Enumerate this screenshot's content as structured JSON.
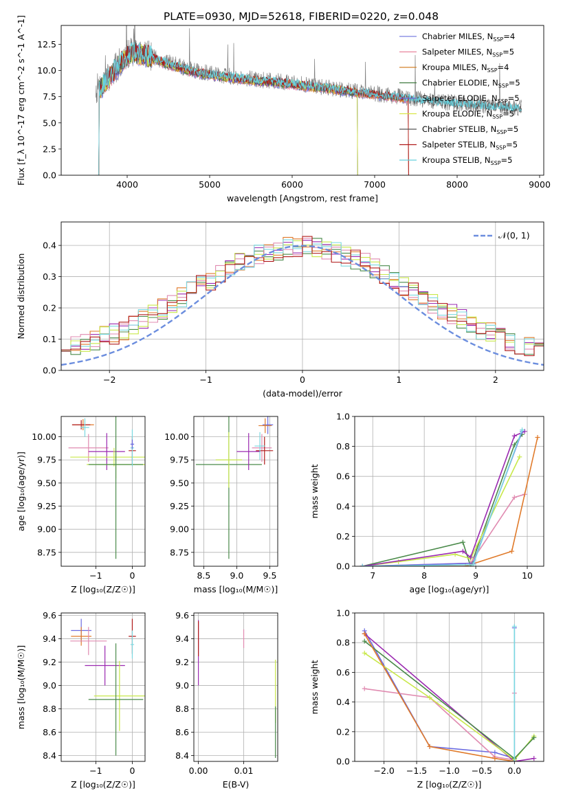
{
  "figure": {
    "title": "PLATE=0930, MJD=52618, FIBERID=0220, z=0.048"
  },
  "colors": {
    "chabrier_miles": "#7a7fe0",
    "salpeter_miles": "#e8829c",
    "kroupa_miles": "#d4822a",
    "chabrier_elodie": "#3f7a3f",
    "salpeter_elodie": "#7060d0",
    "kroupa_elodie": "#d8e645",
    "chabrier_stelib": "#555555",
    "salpeter_stelib": "#b01a1a",
    "kroupa_stelib": "#66d0dd",
    "normal": "#6b8dde",
    "purple": "#9a28b0",
    "orange": "#e07a2a",
    "green": "#4a8a4a",
    "pink": "#e08ab0",
    "lime": "#c8e84a",
    "cyan": "#7ad8e0",
    "blue": "#6a6ae0",
    "red": "#c02020",
    "grid": "#b0b0b0"
  },
  "chart_data": [
    {
      "id": "spectrum",
      "type": "line",
      "xlabel": "wavelength [Angstrom, rest frame]",
      "ylabel": "Flux [f_λ 10^-17 erg cm^-2 s^-1 A^-1]",
      "xlim": [
        3200,
        9050
      ],
      "ylim": [
        0,
        14.3
      ],
      "xticks": [
        4000,
        5000,
        6000,
        7000,
        8000,
        9000
      ],
      "yticks": [
        0.0,
        2.5,
        5.0,
        7.5,
        10.0,
        12.5
      ],
      "grid": false,
      "legend_position": "top-right",
      "legend": [
        {
          "label": "Chabrier MILES, N",
          "sub": "SSP",
          "suffix": "=4",
          "color_key": "chabrier_miles"
        },
        {
          "label": "Salpeter MILES, N",
          "sub": "SSP",
          "suffix": "=5",
          "color_key": "salpeter_miles"
        },
        {
          "label": "Kroupa MILES, N",
          "sub": "SSP",
          "suffix": "=4",
          "color_key": "kroupa_miles"
        },
        {
          "label": "Chabrier ELODIE, N",
          "sub": "SSP",
          "suffix": "=5",
          "color_key": "chabrier_elodie"
        },
        {
          "label": "Salpeter ELODIE, N",
          "sub": "SSP",
          "suffix": "=5",
          "color_key": "salpeter_elodie"
        },
        {
          "label": "Kroupa ELODIE, N",
          "sub": "SSP",
          "suffix": "=5",
          "color_key": "kroupa_elodie"
        },
        {
          "label": "Chabrier STELIB, N",
          "sub": "SSP",
          "suffix": "=5",
          "color_key": "chabrier_stelib"
        },
        {
          "label": "Salpeter STELIB, N",
          "sub": "SSP",
          "suffix": "=5",
          "color_key": "salpeter_stelib"
        },
        {
          "label": "Kroupa STELIB, N",
          "sub": "SSP",
          "suffix": "=5",
          "color_key": "kroupa_stelib"
        }
      ],
      "continuum": {
        "x": [
          3620,
          3700,
          3800,
          3900,
          4000,
          4100,
          4200,
          4400,
          4600,
          4800,
          5000,
          5200,
          5400,
          5600,
          5800,
          6000,
          6200,
          6400,
          6600,
          6800,
          7000,
          7200,
          7400,
          7600,
          7800,
          8000,
          8200,
          8400,
          8600,
          8800
        ],
        "y": [
          8.2,
          8.6,
          9.6,
          10.6,
          11.6,
          11.8,
          11.7,
          11.0,
          10.5,
          10.0,
          9.7,
          9.5,
          9.3,
          9.1,
          9.0,
          8.8,
          8.6,
          8.4,
          8.2,
          8.0,
          7.8,
          7.6,
          7.4,
          7.2,
          7.0,
          6.9,
          6.8,
          6.6,
          6.5,
          6.4
        ]
      },
      "model_end_wavelength": [
        7420,
        7420,
        7420,
        6800,
        6800,
        6800,
        8780,
        7420,
        8780
      ]
    },
    {
      "id": "residuals",
      "type": "line",
      "xlabel": "(data-model)/error",
      "ylabel": "Normed distribution",
      "xlim": [
        -2.5,
        2.5
      ],
      "ylim": [
        0,
        0.475
      ],
      "xticks": [
        -2,
        -1,
        0,
        1,
        2
      ],
      "yticks": [
        0.0,
        0.1,
        0.2,
        0.3,
        0.4
      ],
      "grid": true,
      "legend_position": "top-right",
      "legend": [
        {
          "label": "𝒩(0, 1)",
          "color_key": "normal"
        }
      ],
      "bin_width": 0.1,
      "histogram_color_keys": [
        "purple",
        "orange",
        "green",
        "pink",
        "lime",
        "cyan",
        "salpeter_stelib"
      ]
    },
    {
      "id": "age_vs_Z",
      "type": "scatter",
      "xlabel": "Z [log₁₀(Z/Z☉)]",
      "ylabel": "age  [log₁₀(age/yr)]",
      "xlim": [
        -1.95,
        0.35
      ],
      "ylim": [
        8.6,
        10.22
      ],
      "xticks": [
        -1,
        0
      ],
      "yticks": [
        8.75,
        9.0,
        9.25,
        9.5,
        9.75,
        10.0
      ],
      "grid": true,
      "points": [
        {
          "x": -1.35,
          "y": 10.13,
          "xerr": 0.3,
          "yerr": 0.06,
          "color_key": "orange"
        },
        {
          "x": -1.4,
          "y": 10.13,
          "xerr": 0.25,
          "yerr": 0.05,
          "color_key": "salpeter_stelib"
        },
        {
          "x": -1.3,
          "y": 10.1,
          "xerr": 0.12,
          "yerr": 0.1,
          "color_key": "cyan"
        },
        {
          "x": -1.2,
          "y": 9.88,
          "xerr": 0.55,
          "yerr": 0.15,
          "color_key": "pink"
        },
        {
          "x": -0.7,
          "y": 9.84,
          "xerr": 0.5,
          "yerr": 0.2,
          "color_key": "purple"
        },
        {
          "x": -0.5,
          "y": 9.78,
          "xerr": 1.2,
          "yerr": 0.1,
          "color_key": "lime"
        },
        {
          "x": -0.45,
          "y": 9.7,
          "xerr": 0.8,
          "yerr": 0.15,
          "color_key": "lime"
        },
        {
          "x": -0.45,
          "y": 9.7,
          "xerr": 0.75,
          "yerr": 1.02,
          "color_key": "green"
        },
        {
          "x": 0.0,
          "y": 9.85,
          "xerr": 0.1,
          "yerr": 0.15,
          "color_key": "salpeter_stelib"
        },
        {
          "x": 0.0,
          "y": 9.88,
          "xerr": 0.05,
          "yerr": 0.2,
          "color_key": "cyan"
        },
        {
          "x": 0.0,
          "y": 9.92,
          "xerr": 0.05,
          "yerr": 0.05,
          "color_key": "blue"
        }
      ]
    },
    {
      "id": "age_vs_mass",
      "type": "scatter",
      "xlabel": "mass [log₁₀(M/M☉)]",
      "ylabel": "",
      "xlim": [
        8.35,
        9.62
      ],
      "ylim": [
        8.6,
        10.22
      ],
      "xticks": [
        8.5,
        9.0,
        9.5
      ],
      "yticks": [
        8.75,
        9.0,
        9.25,
        9.5,
        9.75,
        10.0
      ],
      "grid": true,
      "points": [
        {
          "x": 8.88,
          "y": 9.7,
          "xerr": 0.5,
          "yerr": 1.02,
          "color_key": "green"
        },
        {
          "x": 8.88,
          "y": 9.75,
          "xerr": 0.2,
          "yerr": 0.3,
          "color_key": "lime"
        },
        {
          "x": 9.18,
          "y": 9.84,
          "xerr": 0.18,
          "yerr": 0.2,
          "color_key": "purple"
        },
        {
          "x": 9.38,
          "y": 9.88,
          "xerr": 0.15,
          "yerr": 0.15,
          "color_key": "pink"
        },
        {
          "x": 9.42,
          "y": 9.85,
          "xerr": 0.13,
          "yerr": 0.15,
          "color_key": "salpeter_stelib"
        },
        {
          "x": 9.35,
          "y": 9.9,
          "xerr": 0.08,
          "yerr": 0.15,
          "color_key": "cyan"
        },
        {
          "x": 9.47,
          "y": 10.13,
          "xerr": 0.08,
          "yerr": 0.1,
          "color_key": "blue"
        },
        {
          "x": 9.43,
          "y": 10.12,
          "xerr": 0.1,
          "yerr": 0.08,
          "color_key": "orange"
        }
      ]
    },
    {
      "id": "mass_weight_vs_age",
      "type": "line",
      "xlabel": "age  [log₁₀(age/yr)]",
      "ylabel": "mass weight",
      "xlim": [
        6.65,
        10.32
      ],
      "ylim": [
        0,
        1.0
      ],
      "xticks": [
        7,
        8,
        9,
        10
      ],
      "yticks": [
        0.0,
        0.2,
        0.4,
        0.6,
        0.8,
        1.0
      ],
      "grid": true,
      "series": [
        {
          "color_key": "green",
          "x": [
            6.8,
            8.75,
            8.9,
            9.75,
            9.9
          ],
          "y": [
            0.0,
            0.16,
            0.0,
            0.81,
            0.88
          ]
        },
        {
          "color_key": "lime",
          "x": [
            6.8,
            7.5,
            8.6,
            8.9,
            9.85
          ],
          "y": [
            0.0,
            0.03,
            0.08,
            0.05,
            0.73
          ]
        },
        {
          "color_key": "pink",
          "x": [
            6.8,
            8.9,
            9.75,
            9.95
          ],
          "y": [
            0.0,
            0.02,
            0.46,
            0.48
          ]
        },
        {
          "color_key": "orange",
          "x": [
            6.8,
            8.8,
            9.7,
            10.2
          ],
          "y": [
            0.0,
            0.0,
            0.1,
            0.86
          ]
        },
        {
          "color_key": "purple",
          "x": [
            6.8,
            8.75,
            8.9,
            9.75,
            9.95
          ],
          "y": [
            0.0,
            0.1,
            0.06,
            0.87,
            0.9
          ]
        },
        {
          "color_key": "blue",
          "x": [
            6.8,
            8.95,
            9.9
          ],
          "y": [
            0.0,
            0.02,
            0.9
          ]
        },
        {
          "color_key": "cyan",
          "x": [
            6.8,
            8.95,
            9.9
          ],
          "y": [
            0.0,
            0.01,
            0.91
          ]
        }
      ]
    },
    {
      "id": "mass_vs_Z",
      "type": "scatter",
      "xlabel": "Z [log₁₀(Z/Z☉)]",
      "ylabel": "mass [log₁₀(M/M☉)]",
      "xlim": [
        -1.95,
        0.35
      ],
      "ylim": [
        8.35,
        9.62
      ],
      "xticks": [
        -1,
        0
      ],
      "yticks": [
        8.4,
        8.6,
        8.8,
        9.0,
        9.2,
        9.4,
        9.6
      ],
      "grid": true,
      "points": [
        {
          "x": -1.4,
          "y": 9.47,
          "xerr": 0.28,
          "yerr": 0.1,
          "color_key": "blue"
        },
        {
          "x": -1.4,
          "y": 9.42,
          "xerr": 0.28,
          "yerr": 0.08,
          "color_key": "orange"
        },
        {
          "x": -1.2,
          "y": 9.38,
          "xerr": 0.5,
          "yerr": 0.12,
          "color_key": "pink"
        },
        {
          "x": -0.75,
          "y": 9.17,
          "xerr": 0.55,
          "yerr": 0.17,
          "color_key": "purple"
        },
        {
          "x": -0.35,
          "y": 8.91,
          "xerr": 0.7,
          "yerr": 0.3,
          "color_key": "lime"
        },
        {
          "x": -0.45,
          "y": 8.88,
          "xerr": 0.75,
          "yerr": 0.48,
          "color_key": "green"
        },
        {
          "x": 0.0,
          "y": 9.42,
          "xerr": 0.1,
          "yerr": 0.15,
          "color_key": "salpeter_stelib"
        },
        {
          "x": 0.0,
          "y": 9.35,
          "xerr": 0.05,
          "yerr": 0.12,
          "color_key": "cyan"
        }
      ]
    },
    {
      "id": "mass_vs_ebv",
      "type": "scatter",
      "xlabel": "E(B-V)",
      "ylabel": "",
      "xlim": [
        -0.001,
        0.0175
      ],
      "ylim": [
        8.35,
        9.62
      ],
      "xticks": [
        0.0,
        0.01
      ],
      "yticks": [
        8.4,
        8.6,
        8.8,
        9.0,
        9.2,
        9.4,
        9.6
      ],
      "grid": true,
      "points": [
        {
          "x": 0.0,
          "y": 9.28,
          "xerr": 0.0,
          "yerr": 0.28,
          "color_key": "purple"
        },
        {
          "x": 0.0,
          "y": 9.4,
          "xerr": 0.0,
          "yerr": 0.15,
          "color_key": "salpeter_stelib"
        },
        {
          "x": 0.01,
          "y": 9.4,
          "xerr": 0.0,
          "yerr": 0.08,
          "color_key": "pink"
        },
        {
          "x": 0.017,
          "y": 8.95,
          "xerr": 0.0,
          "yerr": 0.27,
          "color_key": "lime"
        },
        {
          "x": 0.017,
          "y": 8.6,
          "xerr": 0.0,
          "yerr": 0.22,
          "color_key": "green"
        }
      ]
    },
    {
      "id": "mass_weight_vs_Z",
      "type": "line",
      "xlabel": "Z [log₁₀(Z/Z☉)]",
      "ylabel": "mass weight",
      "xlim": [
        -2.45,
        0.45
      ],
      "ylim": [
        0,
        1.0
      ],
      "xticks": [
        -2.0,
        -1.5,
        -1.0,
        -0.5,
        0.0
      ],
      "yticks": [
        0.0,
        0.2,
        0.4,
        0.6,
        0.8,
        1.0
      ],
      "grid": true,
      "series": [
        {
          "color_key": "blue",
          "x": [
            -2.3,
            -1.3,
            -0.3,
            0.0,
            0.0
          ],
          "y": [
            0.88,
            0.1,
            0.06,
            0.02,
            0.9
          ]
        },
        {
          "color_key": "pink",
          "x": [
            -2.3,
            -1.3,
            -0.3,
            0.0,
            0.0
          ],
          "y": [
            0.49,
            0.43,
            0.03,
            0.01,
            0.46
          ]
        },
        {
          "color_key": "purple",
          "x": [
            -2.3,
            0.0,
            0.3
          ],
          "y": [
            0.86,
            0.0,
            0.02
          ]
        },
        {
          "color_key": "lime",
          "x": [
            -2.3,
            -1.3,
            0.0,
            0.3
          ],
          "y": [
            0.73,
            0.43,
            0.01,
            0.17
          ]
        },
        {
          "color_key": "green",
          "x": [
            -2.3,
            0.0,
            0.3
          ],
          "y": [
            0.81,
            0.02,
            0.16
          ]
        },
        {
          "color_key": "orange",
          "x": [
            -2.3,
            -1.3,
            -0.3,
            0.0
          ],
          "y": [
            0.86,
            0.1,
            0.02,
            0.0
          ]
        },
        {
          "color_key": "cyan",
          "x": [
            0.0,
            0.0
          ],
          "y": [
            0.0,
            0.91
          ]
        }
      ]
    }
  ]
}
